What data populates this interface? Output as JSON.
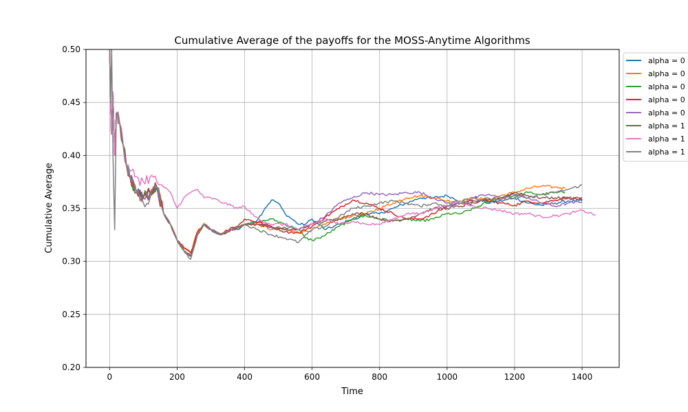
{
  "chart_data": {
    "type": "line",
    "title": "Cumulative Average of the payoffs for the MOSS-Anytime Algorithms",
    "xlabel": "Time",
    "ylabel": "Cumulative Average",
    "xlim": [
      -70,
      1510
    ],
    "ylim": [
      0.2,
      0.5
    ],
    "xticks": [
      0,
      200,
      400,
      600,
      800,
      1000,
      1200,
      1400
    ],
    "yticks": [
      0.2,
      0.25,
      0.3,
      0.35,
      0.4,
      0.45,
      0.5
    ],
    "xtick_labels": [
      "0",
      "200",
      "400",
      "600",
      "800",
      "1000",
      "1200",
      "1400"
    ],
    "ytick_labels": [
      "0.20",
      "0.25",
      "0.30",
      "0.35",
      "0.40",
      "0.45",
      "0.50"
    ],
    "grid": true,
    "legend_position": "outside-top-right",
    "series": [
      {
        "name": "alpha = 0",
        "color": "#1f77b4",
        "x": [
          0,
          5,
          10,
          15,
          20,
          30,
          40,
          50,
          60,
          80,
          100,
          120,
          140,
          160,
          180,
          200,
          220,
          240,
          260,
          280,
          300,
          330,
          360,
          380,
          400,
          420,
          440,
          460,
          480,
          500,
          520,
          540,
          560,
          580,
          600,
          640,
          680,
          720,
          760,
          800,
          840,
          880,
          920,
          960,
          1000,
          1040,
          1080,
          1120,
          1160,
          1200,
          1240,
          1280,
          1320,
          1360,
          1400
        ],
        "y": [
          0.5,
          0.42,
          0.46,
          0.4,
          0.44,
          0.43,
          0.41,
          0.39,
          0.38,
          0.365,
          0.36,
          0.365,
          0.37,
          0.345,
          0.335,
          0.32,
          0.31,
          0.305,
          0.325,
          0.335,
          0.33,
          0.325,
          0.33,
          0.33,
          0.335,
          0.335,
          0.34,
          0.35,
          0.358,
          0.355,
          0.345,
          0.34,
          0.335,
          0.335,
          0.34,
          0.33,
          0.335,
          0.34,
          0.345,
          0.345,
          0.35,
          0.355,
          0.36,
          0.36,
          0.362,
          0.357,
          0.36,
          0.355,
          0.357,
          0.36,
          0.355,
          0.353,
          0.355,
          0.357,
          0.357
        ]
      },
      {
        "name": "alpha = 0",
        "color": "#ff7f0e",
        "x": [
          0,
          5,
          10,
          15,
          20,
          30,
          40,
          50,
          60,
          80,
          100,
          120,
          140,
          160,
          180,
          200,
          220,
          240,
          260,
          280,
          300,
          330,
          360,
          380,
          400,
          440,
          480,
          520,
          560,
          600,
          640,
          680,
          720,
          760,
          800,
          840,
          880,
          920,
          960,
          1000,
          1040,
          1080,
          1120,
          1160,
          1200,
          1240,
          1280,
          1320,
          1350
        ],
        "y": [
          0.5,
          0.42,
          0.46,
          0.4,
          0.44,
          0.43,
          0.41,
          0.39,
          0.38,
          0.365,
          0.36,
          0.365,
          0.37,
          0.345,
          0.335,
          0.32,
          0.312,
          0.308,
          0.328,
          0.336,
          0.33,
          0.325,
          0.33,
          0.332,
          0.335,
          0.335,
          0.33,
          0.33,
          0.327,
          0.33,
          0.335,
          0.34,
          0.343,
          0.345,
          0.35,
          0.355,
          0.36,
          0.362,
          0.36,
          0.357,
          0.357,
          0.36,
          0.358,
          0.362,
          0.365,
          0.369,
          0.371,
          0.37,
          0.369
        ]
      },
      {
        "name": "alpha = 0",
        "color": "#2ca02c",
        "x": [
          0,
          5,
          10,
          15,
          20,
          30,
          40,
          50,
          60,
          80,
          100,
          120,
          140,
          160,
          180,
          200,
          220,
          240,
          260,
          280,
          300,
          330,
          360,
          380,
          400,
          440,
          480,
          520,
          560,
          580,
          600,
          620,
          640,
          680,
          720,
          760,
          800,
          840,
          880,
          920,
          960,
          1000,
          1040,
          1080,
          1120,
          1160,
          1200,
          1240,
          1280,
          1320,
          1350
        ],
        "y": [
          0.5,
          0.42,
          0.46,
          0.4,
          0.44,
          0.43,
          0.41,
          0.39,
          0.38,
          0.365,
          0.36,
          0.365,
          0.37,
          0.345,
          0.335,
          0.32,
          0.31,
          0.305,
          0.325,
          0.335,
          0.33,
          0.325,
          0.33,
          0.332,
          0.335,
          0.337,
          0.34,
          0.335,
          0.33,
          0.322,
          0.32,
          0.322,
          0.325,
          0.333,
          0.34,
          0.343,
          0.34,
          0.338,
          0.34,
          0.338,
          0.34,
          0.345,
          0.345,
          0.35,
          0.356,
          0.36,
          0.362,
          0.365,
          0.363,
          0.365,
          0.365
        ]
      },
      {
        "name": "alpha = 0",
        "color": "#d62728",
        "x": [
          0,
          5,
          10,
          15,
          20,
          30,
          40,
          50,
          60,
          80,
          100,
          120,
          140,
          160,
          180,
          200,
          220,
          240,
          260,
          280,
          300,
          330,
          360,
          380,
          400,
          440,
          480,
          520,
          560,
          600,
          640,
          680,
          720,
          760,
          800,
          840,
          880,
          920,
          960,
          1000,
          1040,
          1080,
          1120,
          1160,
          1200,
          1240,
          1280,
          1320,
          1360,
          1400
        ],
        "y": [
          0.5,
          0.42,
          0.46,
          0.4,
          0.44,
          0.43,
          0.41,
          0.39,
          0.38,
          0.365,
          0.36,
          0.365,
          0.37,
          0.345,
          0.335,
          0.32,
          0.313,
          0.308,
          0.328,
          0.335,
          0.33,
          0.326,
          0.332,
          0.333,
          0.34,
          0.337,
          0.333,
          0.328,
          0.327,
          0.333,
          0.342,
          0.35,
          0.358,
          0.355,
          0.35,
          0.345,
          0.34,
          0.34,
          0.345,
          0.352,
          0.355,
          0.357,
          0.357,
          0.355,
          0.353,
          0.357,
          0.355,
          0.358,
          0.36,
          0.358
        ]
      },
      {
        "name": "alpha = 0",
        "color": "#9467bd",
        "x": [
          0,
          5,
          10,
          15,
          20,
          30,
          40,
          50,
          60,
          80,
          100,
          120,
          140,
          160,
          180,
          200,
          220,
          240,
          260,
          280,
          300,
          330,
          360,
          380,
          400,
          440,
          480,
          520,
          560,
          600,
          640,
          680,
          720,
          760,
          800,
          840,
          880,
          920,
          960,
          1000,
          1040,
          1080,
          1120,
          1160,
          1200,
          1240,
          1280,
          1320,
          1360,
          1400
        ],
        "y": [
          0.5,
          0.42,
          0.46,
          0.4,
          0.44,
          0.43,
          0.41,
          0.39,
          0.38,
          0.365,
          0.36,
          0.365,
          0.37,
          0.345,
          0.335,
          0.32,
          0.31,
          0.305,
          0.325,
          0.335,
          0.33,
          0.325,
          0.33,
          0.332,
          0.335,
          0.335,
          0.332,
          0.332,
          0.33,
          0.335,
          0.343,
          0.355,
          0.36,
          0.365,
          0.363,
          0.363,
          0.365,
          0.365,
          0.36,
          0.355,
          0.355,
          0.36,
          0.363,
          0.36,
          0.363,
          0.36,
          0.355,
          0.352,
          0.355,
          0.356
        ]
      },
      {
        "name": "alpha = 1",
        "color": "#8c564b",
        "x": [
          0,
          5,
          10,
          15,
          20,
          30,
          40,
          50,
          60,
          80,
          100,
          120,
          140,
          160,
          180,
          200,
          220,
          240,
          260,
          280,
          300,
          330,
          360,
          380,
          400,
          440,
          480,
          520,
          560,
          600,
          640,
          680,
          720,
          760,
          800,
          840,
          880,
          920,
          960,
          1000,
          1040,
          1080,
          1120,
          1160,
          1200,
          1240,
          1280,
          1320,
          1360,
          1400
        ],
        "y": [
          0.5,
          0.42,
          0.46,
          0.4,
          0.44,
          0.43,
          0.41,
          0.39,
          0.38,
          0.365,
          0.36,
          0.365,
          0.37,
          0.345,
          0.335,
          0.32,
          0.31,
          0.305,
          0.325,
          0.335,
          0.33,
          0.325,
          0.33,
          0.332,
          0.335,
          0.335,
          0.332,
          0.33,
          0.33,
          0.335,
          0.338,
          0.34,
          0.345,
          0.345,
          0.34,
          0.338,
          0.34,
          0.345,
          0.35,
          0.35,
          0.352,
          0.355,
          0.358,
          0.36,
          0.365,
          0.362,
          0.36,
          0.36,
          0.36,
          0.36
        ]
      },
      {
        "name": "alpha = 1",
        "color": "#e377c2",
        "x": [
          0,
          5,
          10,
          15,
          20,
          30,
          40,
          50,
          60,
          80,
          100,
          120,
          140,
          160,
          180,
          200,
          220,
          240,
          260,
          280,
          300,
          340,
          380,
          400,
          420,
          440,
          480,
          520,
          560,
          600,
          640,
          680,
          720,
          760,
          800,
          840,
          880,
          920,
          960,
          1000,
          1040,
          1080,
          1120,
          1160,
          1200,
          1240,
          1280,
          1320,
          1360,
          1400,
          1440
        ],
        "y": [
          0.5,
          0.42,
          0.46,
          0.4,
          0.44,
          0.43,
          0.41,
          0.39,
          0.385,
          0.38,
          0.375,
          0.38,
          0.375,
          0.37,
          0.365,
          0.35,
          0.36,
          0.365,
          0.368,
          0.36,
          0.36,
          0.355,
          0.35,
          0.352,
          0.345,
          0.34,
          0.335,
          0.335,
          0.33,
          0.335,
          0.34,
          0.335,
          0.338,
          0.335,
          0.335,
          0.34,
          0.345,
          0.345,
          0.35,
          0.353,
          0.355,
          0.352,
          0.35,
          0.348,
          0.345,
          0.345,
          0.342,
          0.343,
          0.345,
          0.348,
          0.344
        ]
      },
      {
        "name": "alpha = 1",
        "color": "#7f7f7f",
        "x": [
          0,
          3,
          6,
          10,
          15,
          20,
          30,
          40,
          50,
          60,
          80,
          100,
          120,
          140,
          160,
          180,
          200,
          220,
          240,
          260,
          280,
          300,
          330,
          360,
          380,
          400,
          440,
          480,
          520,
          560,
          600,
          640,
          680,
          720,
          760,
          800,
          840,
          880,
          920,
          960,
          1000,
          1040,
          1080,
          1120,
          1160,
          1200,
          1240,
          1280,
          1320,
          1360,
          1400
        ],
        "y": [
          0.5,
          0.45,
          0.5,
          0.4,
          0.33,
          0.44,
          0.43,
          0.41,
          0.39,
          0.38,
          0.365,
          0.355,
          0.36,
          0.37,
          0.345,
          0.335,
          0.32,
          0.31,
          0.302,
          0.325,
          0.335,
          0.33,
          0.325,
          0.33,
          0.332,
          0.335,
          0.33,
          0.325,
          0.322,
          0.318,
          0.33,
          0.333,
          0.342,
          0.35,
          0.352,
          0.355,
          0.357,
          0.355,
          0.352,
          0.355,
          0.352,
          0.355,
          0.357,
          0.36,
          0.358,
          0.36,
          0.36,
          0.363,
          0.365,
          0.368,
          0.372
        ]
      }
    ]
  }
}
